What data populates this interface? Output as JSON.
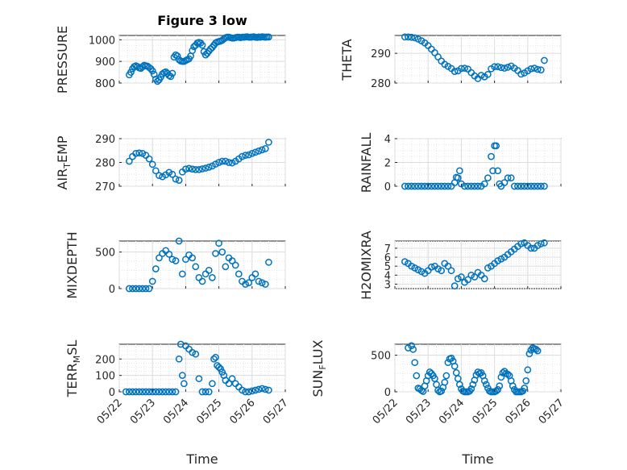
{
  "title": "Figure 3 low",
  "xlabel": "Time",
  "marker_color": "#0072BD",
  "marker": "open-circle",
  "grid": "major-and-minor",
  "x_tick_labels": [
    "05/22",
    "05/23",
    "05/24",
    "05/25",
    "05/26",
    "05/27"
  ],
  "chart_data": [
    {
      "type": "scatter",
      "ylabel": "PRESSURE",
      "ylim": [
        800,
        1020
      ],
      "yticks": [
        800,
        900,
        1000
      ],
      "xlim": [
        "05/22",
        "05/27"
      ],
      "series": [
        {
          "x": [
            0.3,
            0.35,
            0.4,
            0.45,
            0.5,
            0.55,
            0.6,
            0.65,
            0.7,
            0.75,
            0.8,
            0.85,
            0.9,
            0.95,
            1.0,
            1.05,
            1.1,
            1.15,
            1.2,
            1.25,
            1.3,
            1.35,
            1.4,
            1.45,
            1.5,
            1.55,
            1.6,
            1.65,
            1.7,
            1.75,
            1.8,
            1.85,
            1.9,
            1.95,
            2.0,
            2.05,
            2.1,
            2.15,
            2.2,
            2.25,
            2.3,
            2.35,
            2.4,
            2.45,
            2.5,
            2.55,
            2.6,
            2.65,
            2.7,
            2.75,
            2.8,
            2.85,
            2.9,
            2.95,
            3.0,
            3.05,
            3.1,
            3.15,
            3.2,
            3.25,
            3.3,
            3.35,
            3.4,
            3.45,
            3.5,
            3.55,
            3.6,
            3.65,
            3.7,
            3.75,
            3.8,
            3.85,
            3.9,
            3.95,
            4.0,
            4.05,
            4.1,
            4.15,
            4.2,
            4.25,
            4.3,
            4.35,
            4.4,
            4.45,
            4.5
          ],
          "y": [
            838,
            850,
            866,
            876,
            880,
            876,
            870,
            868,
            875,
            882,
            880,
            878,
            872,
            866,
            856,
            840,
            818,
            808,
            815,
            828,
            842,
            848,
            852,
            845,
            835,
            830,
            845,
            920,
            930,
            925,
            908,
            902,
            900,
            900,
            904,
            908,
            912,
            925,
            950,
            968,
            975,
            985,
            988,
            985,
            975,
            945,
            930,
            938,
            948,
            958,
            965,
            975,
            985,
            990,
            992,
            994,
            998,
            1004,
            1010,
            1012,
            1012,
            1010,
            1008,
            1008,
            1010,
            1012,
            1012,
            1010,
            1012,
            1012,
            1013,
            1014,
            1012,
            1012,
            1013,
            1014,
            1012,
            1011,
            1013,
            1012,
            1014,
            1013,
            1012,
            1013,
            1013
          ]
        }
      ]
    },
    {
      "type": "scatter",
      "ylabel": "THETA",
      "ylim": [
        280,
        296
      ],
      "yticks": [
        280,
        290
      ],
      "xlim": [
        "05/22",
        "05/27"
      ],
      "series": [
        {
          "x": [
            0.3,
            0.4,
            0.5,
            0.6,
            0.7,
            0.8,
            0.9,
            1.0,
            1.1,
            1.2,
            1.3,
            1.4,
            1.5,
            1.6,
            1.7,
            1.8,
            1.9,
            2.0,
            2.1,
            2.2,
            2.3,
            2.4,
            2.5,
            2.6,
            2.7,
            2.8,
            2.9,
            3.0,
            3.1,
            3.2,
            3.3,
            3.4,
            3.5,
            3.6,
            3.7,
            3.8,
            3.9,
            4.0,
            4.1,
            4.2,
            4.3,
            4.4,
            4.5
          ],
          "y": [
            295.5,
            295.5,
            295.4,
            295.2,
            294.8,
            294.2,
            293.5,
            292.6,
            291.4,
            290.2,
            288.8,
            287.4,
            286.3,
            285.6,
            284.9,
            283.9,
            284.1,
            284.9,
            285.0,
            284.7,
            283.5,
            282.4,
            281.5,
            282.6,
            282.1,
            282.9,
            284.8,
            285.5,
            285.5,
            285.2,
            285.0,
            285.3,
            285.7,
            285.0,
            284.2,
            283.0,
            283.4,
            284.1,
            284.8,
            285.0,
            284.6,
            284.4,
            287.6
          ]
        }
      ]
    },
    {
      "type": "scatter",
      "ylabel": "AIR_TEMP",
      "ylim": [
        270,
        290
      ],
      "yticks": [
        270,
        280,
        290
      ],
      "xlim": [
        "05/22",
        "05/27"
      ],
      "series": [
        {
          "x": [
            0.3,
            0.4,
            0.5,
            0.6,
            0.7,
            0.8,
            0.9,
            1.0,
            1.1,
            1.2,
            1.3,
            1.4,
            1.5,
            1.6,
            1.7,
            1.8,
            1.9,
            2.0,
            2.1,
            2.2,
            2.3,
            2.4,
            2.5,
            2.6,
            2.7,
            2.8,
            2.9,
            3.0,
            3.1,
            3.2,
            3.3,
            3.4,
            3.5,
            3.6,
            3.7,
            3.8,
            3.9,
            4.0,
            4.1,
            4.2,
            4.3,
            4.4,
            4.5
          ],
          "y": [
            280.5,
            282.5,
            283.8,
            284.0,
            283.8,
            283.0,
            281.5,
            279.2,
            276.5,
            274.5,
            274.0,
            274.8,
            275.8,
            275.0,
            273.0,
            272.5,
            276.0,
            277.2,
            277.5,
            277.2,
            277.0,
            277.0,
            277.3,
            277.6,
            278.0,
            278.5,
            279.3,
            280.0,
            280.5,
            280.5,
            280.0,
            279.8,
            280.5,
            281.5,
            282.5,
            283.0,
            283.2,
            283.8,
            284.3,
            284.8,
            285.3,
            285.8,
            288.5
          ]
        }
      ]
    },
    {
      "type": "scatter",
      "ylabel": "RAINFALL",
      "ylim": [
        0,
        4
      ],
      "yticks": [
        0,
        2,
        4
      ],
      "xlim": [
        "05/22",
        "05/27"
      ],
      "series": [
        {
          "x": [
            0.3,
            0.4,
            0.5,
            0.6,
            0.7,
            0.8,
            0.9,
            1.0,
            1.1,
            1.2,
            1.3,
            1.4,
            1.5,
            1.6,
            1.7,
            1.8,
            1.85,
            1.9,
            1.95,
            2.0,
            2.1,
            2.2,
            2.3,
            2.4,
            2.5,
            2.6,
            2.7,
            2.8,
            2.9,
            2.95,
            3.0,
            3.05,
            3.1,
            3.15,
            3.2,
            3.3,
            3.4,
            3.5,
            3.6,
            3.7,
            3.8,
            3.9,
            4.0,
            4.1,
            4.2,
            4.3,
            4.4,
            4.5
          ],
          "y": [
            0,
            0,
            0,
            0,
            0,
            0,
            0,
            0,
            0,
            0,
            0,
            0,
            0,
            0,
            0,
            0.3,
            0.75,
            0.7,
            1.3,
            0.2,
            0,
            0,
            0,
            0,
            0,
            0,
            0.2,
            0.7,
            2.5,
            1.3,
            3.4,
            3.4,
            1.3,
            0.2,
            0,
            0.3,
            0.7,
            0.7,
            0,
            0,
            0,
            0,
            0,
            0,
            0,
            0,
            0,
            0
          ]
        }
      ]
    },
    {
      "type": "scatter",
      "ylabel": "MIXDEPTH",
      "ylim": [
        0,
        650
      ],
      "yticks": [
        0,
        500
      ],
      "xlim": [
        "05/22",
        "05/27"
      ],
      "series": [
        {
          "x": [
            0.3,
            0.4,
            0.5,
            0.6,
            0.7,
            0.8,
            0.9,
            1.0,
            1.1,
            1.2,
            1.3,
            1.4,
            1.5,
            1.6,
            1.7,
            1.8,
            1.9,
            2.0,
            2.1,
            2.2,
            2.3,
            2.4,
            2.5,
            2.6,
            2.7,
            2.8,
            2.9,
            3.0,
            3.1,
            3.2,
            3.3,
            3.4,
            3.5,
            3.6,
            3.7,
            3.8,
            3.9,
            4.0,
            4.1,
            4.2,
            4.3,
            4.4,
            4.5
          ],
          "y": [
            0,
            0,
            0,
            0,
            0,
            0,
            0,
            100,
            270,
            420,
            480,
            520,
            470,
            400,
            380,
            650,
            200,
            400,
            460,
            420,
            300,
            150,
            100,
            200,
            250,
            150,
            480,
            620,
            500,
            300,
            420,
            380,
            320,
            200,
            100,
            60,
            80,
            150,
            200,
            100,
            80,
            60,
            360
          ]
        }
      ]
    },
    {
      "type": "scatter",
      "ylabel": "H2OMIXRA",
      "ylim": [
        2.5,
        7.8
      ],
      "yticks": [
        3,
        4,
        5,
        6,
        7
      ],
      "xlim": [
        "05/22",
        "05/27"
      ],
      "series": [
        {
          "x": [
            0.3,
            0.4,
            0.5,
            0.6,
            0.7,
            0.8,
            0.9,
            1.0,
            1.1,
            1.2,
            1.3,
            1.4,
            1.5,
            1.6,
            1.7,
            1.8,
            1.9,
            2.0,
            2.1,
            2.2,
            2.3,
            2.4,
            2.5,
            2.6,
            2.7,
            2.8,
            2.9,
            3.0,
            3.1,
            3.2,
            3.3,
            3.4,
            3.5,
            3.6,
            3.7,
            3.8,
            3.9,
            4.0,
            4.1,
            4.2,
            4.3,
            4.4,
            4.5
          ],
          "y": [
            5.5,
            5.3,
            5.0,
            4.8,
            4.6,
            4.4,
            4.2,
            4.5,
            4.9,
            5.0,
            4.7,
            4.5,
            5.3,
            5.0,
            4.5,
            2.8,
            3.6,
            3.8,
            3.2,
            3.5,
            4.0,
            3.8,
            4.3,
            4.0,
            3.6,
            4.8,
            5.0,
            5.3,
            5.6,
            5.8,
            6.0,
            6.3,
            6.6,
            6.9,
            7.2,
            7.5,
            7.6,
            7.3,
            7.0,
            7.0,
            7.3,
            7.5,
            7.6
          ]
        }
      ]
    },
    {
      "type": "scatter",
      "ylabel": "TERR_MSL",
      "ylim": [
        0,
        290
      ],
      "yticks": [
        0,
        100,
        200
      ],
      "xlim": [
        "05/22",
        "05/27"
      ],
      "series": [
        {
          "x": [
            0.2,
            0.3,
            0.4,
            0.5,
            0.6,
            0.7,
            0.8,
            0.9,
            1.0,
            1.1,
            1.2,
            1.3,
            1.4,
            1.5,
            1.6,
            1.7,
            1.8,
            1.85,
            1.9,
            1.95,
            2.0,
            2.1,
            2.2,
            2.3,
            2.4,
            2.5,
            2.6,
            2.7,
            2.8,
            2.85,
            2.9,
            2.95,
            3.0,
            3.05,
            3.1,
            3.15,
            3.2,
            3.3,
            3.4,
            3.5,
            3.6,
            3.7,
            3.8,
            3.9,
            4.0,
            4.1,
            4.2,
            4.3,
            4.4,
            4.5
          ],
          "y": [
            0,
            0,
            0,
            0,
            0,
            0,
            0,
            0,
            0,
            0,
            0,
            0,
            0,
            0,
            0,
            0,
            200,
            290,
            100,
            50,
            280,
            260,
            240,
            230,
            80,
            0,
            0,
            0,
            50,
            200,
            210,
            160,
            150,
            140,
            120,
            100,
            70,
            50,
            80,
            50,
            30,
            10,
            0,
            0,
            5,
            10,
            15,
            20,
            15,
            10
          ]
        }
      ]
    },
    {
      "type": "scatter",
      "ylabel": "SUN_FLUX",
      "ylim": [
        0,
        650
      ],
      "yticks": [
        0,
        500
      ],
      "xlim": [
        "05/22",
        "05/27"
      ],
      "series": [
        {
          "x": [
            0.4,
            0.5,
            0.55,
            0.6,
            0.65,
            0.7,
            0.75,
            0.8,
            0.85,
            0.9,
            0.95,
            1.0,
            1.05,
            1.1,
            1.15,
            1.2,
            1.25,
            1.3,
            1.35,
            1.4,
            1.45,
            1.5,
            1.55,
            1.6,
            1.65,
            1.7,
            1.75,
            1.8,
            1.85,
            1.9,
            1.95,
            2.0,
            2.05,
            2.1,
            2.15,
            2.2,
            2.25,
            2.3,
            2.35,
            2.4,
            2.45,
            2.5,
            2.55,
            2.6,
            2.65,
            2.7,
            2.75,
            2.8,
            2.85,
            2.9,
            2.95,
            3.0,
            3.05,
            3.1,
            3.15,
            3.2,
            3.25,
            3.3,
            3.35,
            3.4,
            3.45,
            3.5,
            3.55,
            3.6,
            3.65,
            3.7,
            3.75,
            3.8,
            3.85,
            3.9,
            3.95,
            4.0,
            4.05,
            4.1,
            4.15,
            4.2,
            4.25,
            4.3
          ],
          "y": [
            600,
            630,
            580,
            400,
            220,
            50,
            40,
            20,
            5,
            80,
            150,
            220,
            270,
            250,
            220,
            180,
            100,
            20,
            0,
            10,
            60,
            130,
            220,
            400,
            450,
            460,
            420,
            350,
            260,
            180,
            100,
            40,
            10,
            0,
            0,
            0,
            10,
            40,
            100,
            160,
            230,
            270,
            250,
            260,
            220,
            150,
            100,
            50,
            10,
            0,
            0,
            0,
            10,
            30,
            80,
            200,
            260,
            280,
            250,
            240,
            220,
            150,
            80,
            30,
            0,
            0,
            0,
            0,
            10,
            50,
            150,
            300,
            520,
            570,
            600,
            590,
            580,
            560
          ]
        }
      ]
    }
  ]
}
